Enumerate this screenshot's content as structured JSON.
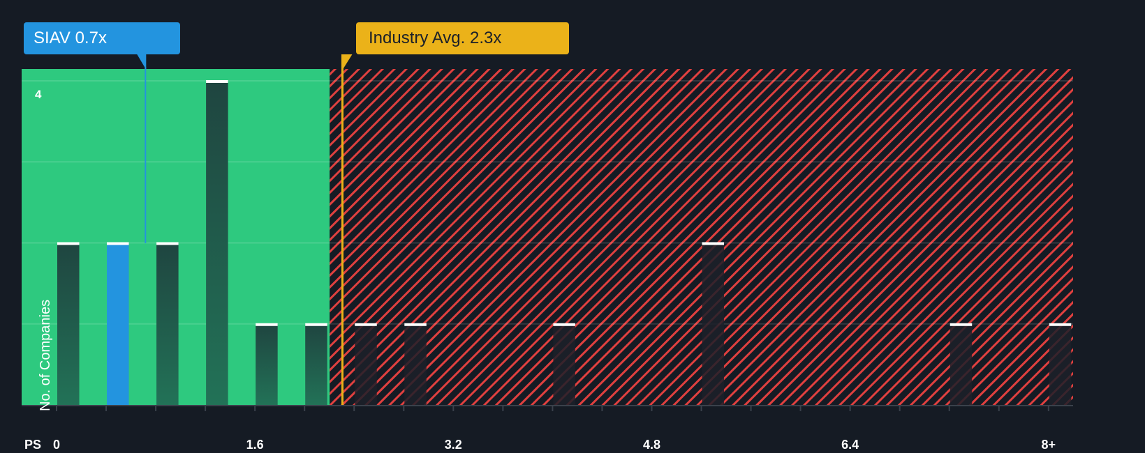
{
  "callouts": {
    "company": {
      "label": "SIAV 0.7x",
      "value": 0.7,
      "color": "#2394df"
    },
    "industry": {
      "label": "Industry Avg. 2.3x",
      "value": 2.3,
      "color": "#ebb219"
    }
  },
  "axis": {
    "y_label": "No. of Companies",
    "y_tick_label": "4",
    "x_name": "PS",
    "x_ticks": [
      {
        "label": "0",
        "value": 0
      },
      {
        "label": "1.6",
        "value": 1.6
      },
      {
        "label": "3.2",
        "value": 3.2
      },
      {
        "label": "4.8",
        "value": 4.8
      },
      {
        "label": "6.4",
        "value": 6.4
      },
      {
        "label": "8+",
        "value": 8.0
      }
    ]
  },
  "colors": {
    "background": "#151b24",
    "undervalued_zone": "#2ec97f",
    "overvalued_hatch": "#e0403f",
    "bar_green_zone": "#1f4a3e",
    "bar_red_zone": "#1c2029",
    "highlight_bar": "#2394df",
    "bar_cap": "#ffffff"
  },
  "chart_data": {
    "type": "bar",
    "title": "Price to Sales Ratio vs Industry",
    "xlabel": "PS",
    "ylabel": "No. of Companies",
    "ylim": [
      0,
      4
    ],
    "xlim": [
      -0.3,
      8.2
    ],
    "bin_width": 0.2,
    "grid": true,
    "categories": [
      "0.0-0.2",
      "0.4-0.6",
      "0.8-1.0",
      "1.2-1.4",
      "1.6-1.8",
      "2.0-2.2",
      "2.4-2.6",
      "2.8-3.0",
      "4.0-4.2",
      "5.2-5.4",
      "7.2-7.4",
      "8+"
    ],
    "bins": [
      {
        "start": 0.0,
        "count": 2,
        "highlight": false
      },
      {
        "start": 0.4,
        "count": 2,
        "highlight": true
      },
      {
        "start": 0.8,
        "count": 2,
        "highlight": false
      },
      {
        "start": 1.2,
        "count": 4,
        "highlight": false
      },
      {
        "start": 1.6,
        "count": 1,
        "highlight": false
      },
      {
        "start": 2.0,
        "count": 1,
        "highlight": false
      },
      {
        "start": 2.4,
        "count": 1,
        "highlight": false
      },
      {
        "start": 2.8,
        "count": 1,
        "highlight": false
      },
      {
        "start": 4.0,
        "count": 1,
        "highlight": false
      },
      {
        "start": 5.2,
        "count": 2,
        "highlight": false
      },
      {
        "start": 7.2,
        "count": 1,
        "highlight": false
      },
      {
        "start": 8.0,
        "count": 1,
        "highlight": false
      }
    ],
    "values": [
      2,
      2,
      2,
      4,
      1,
      1,
      1,
      1,
      1,
      2,
      1,
      1
    ],
    "markers": [
      {
        "name": "SIAV",
        "value": 0.7
      },
      {
        "name": "Industry Avg.",
        "value": 2.3
      }
    ],
    "zones": {
      "green_until": 2.2
    }
  }
}
